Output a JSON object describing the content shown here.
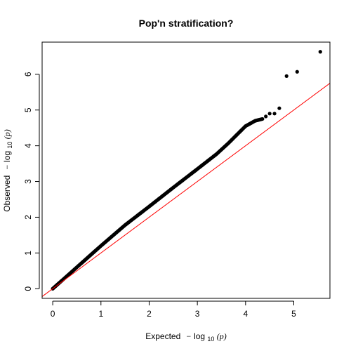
{
  "chart_data": {
    "type": "scatter",
    "title": "Pop'n stratification?",
    "xlabel": {
      "prefix": "Expected",
      "minus": "−",
      "log": "log",
      "base": "10",
      "var": "(p)"
    },
    "ylabel": {
      "prefix": "Observed",
      "minus": "−",
      "log": "log",
      "base": "10",
      "var": "(p)"
    },
    "xlim": [
      -0.22,
      5.75
    ],
    "ylim": [
      -0.27,
      6.9
    ],
    "xticks": [
      0,
      1,
      2,
      3,
      4,
      5
    ],
    "yticks": [
      0,
      1,
      2,
      3,
      4,
      5,
      6
    ],
    "grid": false,
    "legend": "none",
    "point_color": "#000000",
    "reference_line": {
      "slope": 1,
      "intercept": 0,
      "color": "#ff0000"
    },
    "series": [
      {
        "curve": [
          [
            0,
            0
          ],
          [
            0.5,
            0.6
          ],
          [
            1,
            1.2
          ],
          [
            1.5,
            1.78
          ],
          [
            2,
            2.3
          ],
          [
            2.5,
            2.83
          ],
          [
            3,
            3.35
          ],
          [
            3.4,
            3.77
          ],
          [
            3.65,
            4.08
          ],
          [
            3.85,
            4.35
          ],
          [
            4.0,
            4.55
          ],
          [
            4.2,
            4.7
          ],
          [
            4.35,
            4.75
          ]
        ],
        "points": [
          [
            4.42,
            4.82
          ],
          [
            4.5,
            4.9
          ],
          [
            4.6,
            4.9
          ],
          [
            4.7,
            5.05
          ],
          [
            4.85,
            5.95
          ],
          [
            5.07,
            6.07
          ],
          [
            5.55,
            6.63
          ]
        ]
      }
    ]
  }
}
